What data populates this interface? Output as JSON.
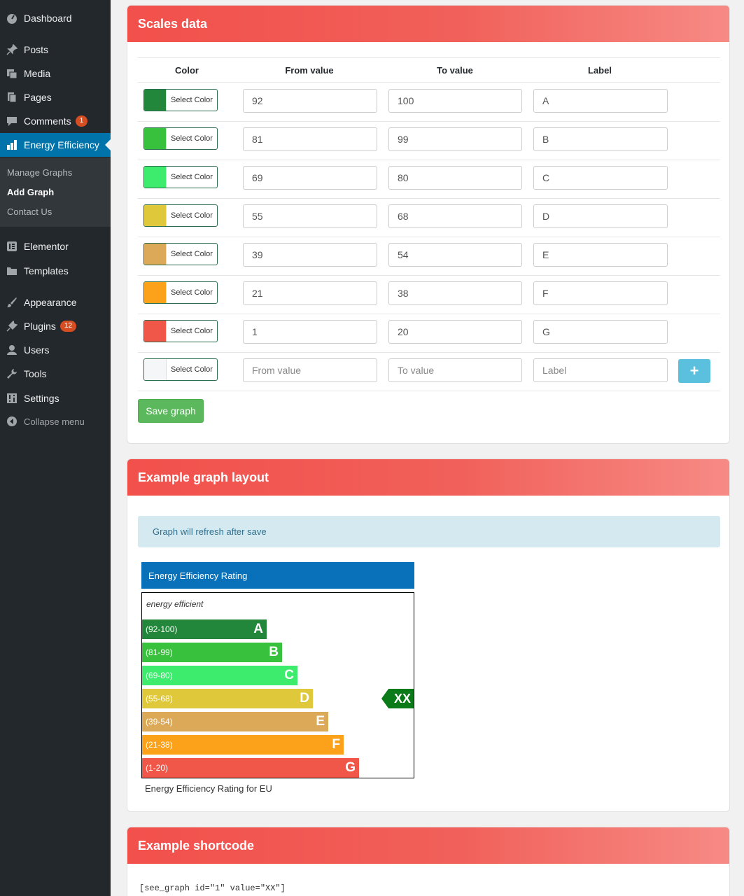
{
  "sidebar": {
    "dashboard": "Dashboard",
    "posts": "Posts",
    "media": "Media",
    "pages": "Pages",
    "comments": "Comments",
    "comments_badge": "1",
    "energy": "Energy Efficiency",
    "sub": [
      "Manage Graphs",
      "Add Graph",
      "Contact Us"
    ],
    "elementor": "Elementor",
    "templates": "Templates",
    "appearance": "Appearance",
    "plugins": "Plugins",
    "plugins_badge": "12",
    "users": "Users",
    "tools": "Tools",
    "settings": "Settings",
    "collapse": "Collapse menu"
  },
  "scales": {
    "title": "Scales data",
    "headers": [
      "Color",
      "From value",
      "To value",
      "Label"
    ],
    "select_color": "Select Color",
    "rows": [
      {
        "color": "#23873b",
        "from": "92",
        "to": "100",
        "label": "A"
      },
      {
        "color": "#38c13c",
        "from": "81",
        "to": "99",
        "label": "B"
      },
      {
        "color": "#3deb6d",
        "from": "69",
        "to": "80",
        "label": "C"
      },
      {
        "color": "#dfc83a",
        "from": "55",
        "to": "68",
        "label": "D"
      },
      {
        "color": "#dca959",
        "from": "39",
        "to": "54",
        "label": "E"
      },
      {
        "color": "#fba11a",
        "from": "21",
        "to": "38",
        "label": "F"
      },
      {
        "color": "#f05748",
        "from": "1",
        "to": "20",
        "label": "G"
      }
    ],
    "new_row": {
      "color": "#f4f6f7",
      "from_placeholder": "From value",
      "to_placeholder": "To value",
      "label_placeholder": "Label",
      "add": "+"
    },
    "save": "Save graph"
  },
  "example": {
    "title": "Example graph layout",
    "alert": "Graph will refresh after save",
    "graph_title": "Energy Efficiency Rating",
    "efficient": "energy efficient",
    "bars": [
      {
        "range": "(92-100)",
        "letter": "A",
        "color": "#23873b"
      },
      {
        "range": "(81-99)",
        "letter": "B",
        "color": "#38c13c"
      },
      {
        "range": "(69-80)",
        "letter": "C",
        "color": "#3deb6d"
      },
      {
        "range": "(55-68)",
        "letter": "D",
        "color": "#dfc83a"
      },
      {
        "range": "(39-54)",
        "letter": "E",
        "color": "#dca959"
      },
      {
        "range": "(21-38)",
        "letter": "F",
        "color": "#fba11a"
      },
      {
        "range": "(1-20)",
        "letter": "G",
        "color": "#f05748"
      }
    ],
    "marker": "XX",
    "marker_row": 3,
    "caption": "Energy Efficiency Rating for EU"
  },
  "shortcode": {
    "title": "Example shortcode",
    "code": "[see_graph id=\"1\" value=\"XX\"]"
  }
}
